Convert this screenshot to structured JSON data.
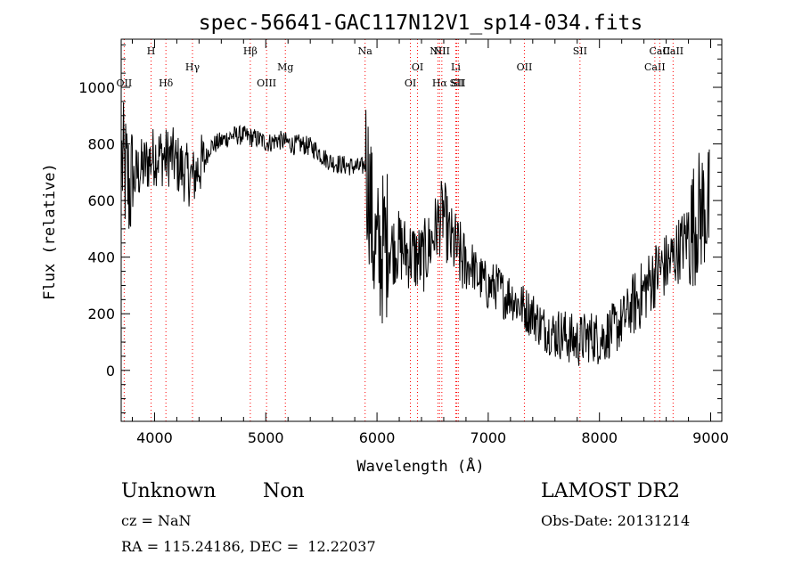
{
  "chart_data": {
    "type": "line",
    "title": "spec-56641-GAC117N12V1_sp14-034.fits",
    "xlabel": "Wavelength (Å)",
    "ylabel": "Flux (relative)",
    "xlim": [
      3700,
      9100
    ],
    "ylim": [
      -180,
      1170
    ],
    "xticks": [
      4000,
      5000,
      6000,
      7000,
      8000,
      9000
    ],
    "yticks": [
      0,
      200,
      400,
      600,
      800,
      1000
    ],
    "grid": false,
    "line_color": "#000000",
    "marker_color": "#ff0000",
    "lines": [
      {
        "label": "OII",
        "x": 3727,
        "row": 2
      },
      {
        "label": "H",
        "x": 3969,
        "row": 0
      },
      {
        "label": "Hδ",
        "x": 4102,
        "row": 2
      },
      {
        "label": "Hγ",
        "x": 4341,
        "row": 1
      },
      {
        "label": "Hβ",
        "x": 4861,
        "row": 0
      },
      {
        "label": "OIII",
        "x": 5007,
        "row": 2
      },
      {
        "label": "Mg",
        "x": 5176,
        "row": 1
      },
      {
        "label": "Na",
        "x": 5893,
        "row": 0
      },
      {
        "label": "OI",
        "x": 6300,
        "row": 2
      },
      {
        "label": "OI",
        "x": 6364,
        "row": 1
      },
      {
        "label": "NII",
        "x": 6548,
        "row": 0
      },
      {
        "label": "Hα",
        "x": 6563,
        "row": 2
      },
      {
        "label": "NII",
        "x": 6583,
        "row": 0
      },
      {
        "label": "Li",
        "x": 6708,
        "row": 1
      },
      {
        "label": "SII",
        "x": 6717,
        "row": 2
      },
      {
        "label": "SII",
        "x": 6731,
        "row": 2
      },
      {
        "label": "OII",
        "x": 7325,
        "row": 1
      },
      {
        "label": "SII",
        "x": 7825,
        "row": 0
      },
      {
        "label": "CaII",
        "x": 8498,
        "row": 1
      },
      {
        "label": "CaII",
        "x": 8542,
        "row": 0
      },
      {
        "label": "CaII",
        "x": 8662,
        "row": 0
      }
    ],
    "series": [
      {
        "x": [
          3700,
          3725,
          3750,
          3775,
          3800,
          3850,
          3900,
          3950,
          4000,
          4050,
          4100,
          4150,
          4200,
          4250,
          4300,
          4350,
          4400,
          4450,
          4500,
          4550,
          4600,
          4650,
          4700,
          4750,
          4800,
          4850,
          4900,
          4950,
          5000,
          5050,
          5100,
          5150,
          5200,
          5250,
          5300,
          5350,
          5400,
          5450,
          5500,
          5550,
          5600,
          5650,
          5700,
          5750,
          5800,
          5850,
          5900,
          5930,
          5960,
          6000,
          6050,
          6100,
          6150,
          6200,
          6250,
          6300,
          6350,
          6400,
          6450,
          6500,
          6550,
          6600,
          6650,
          6700,
          6750,
          6800,
          6850,
          6900,
          6950,
          7000,
          7050,
          7100,
          7150,
          7200,
          7250,
          7300,
          7350,
          7400,
          7450,
          7500,
          7550,
          7600,
          7650,
          7700,
          7750,
          7800,
          7850,
          7900,
          7950,
          8000,
          8050,
          8100,
          8150,
          8200,
          8250,
          8300,
          8350,
          8400,
          8450,
          8500,
          8550,
          8600,
          8650,
          8700,
          8750,
          8800,
          8850,
          8900,
          8950,
          9000
        ],
        "values": [
          750,
          700,
          680,
          640,
          660,
          700,
          720,
          740,
          760,
          760,
          750,
          760,
          730,
          710,
          690,
          680,
          720,
          740,
          790,
          800,
          810,
          820,
          830,
          830,
          830,
          825,
          820,
          815,
          805,
          805,
          815,
          810,
          805,
          795,
          800,
          795,
          790,
          780,
          760,
          745,
          735,
          730,
          725,
          722,
          720,
          715,
          730,
          650,
          480,
          400,
          430,
          450,
          430,
          440,
          420,
          410,
          400,
          390,
          420,
          470,
          520,
          560,
          460,
          440,
          400,
          360,
          380,
          330,
          320,
          290,
          300,
          290,
          260,
          270,
          240,
          230,
          210,
          200,
          170,
          150,
          140,
          130,
          130,
          120,
          110,
          100,
          110,
          120,
          120,
          110,
          120,
          140,
          150,
          170,
          200,
          230,
          250,
          280,
          310,
          340,
          360,
          370,
          390,
          420,
          450,
          480,
          520,
          560,
          580,
          560
        ]
      }
    ]
  },
  "info": {
    "type_label": "Unknown",
    "subclass_label": "Non",
    "cz": "cz = NaN",
    "radec": "RA = 115.24186, DEC =  12.22037",
    "survey": "LAMOST DR2",
    "obs_date": "Obs-Date: 20131214"
  }
}
